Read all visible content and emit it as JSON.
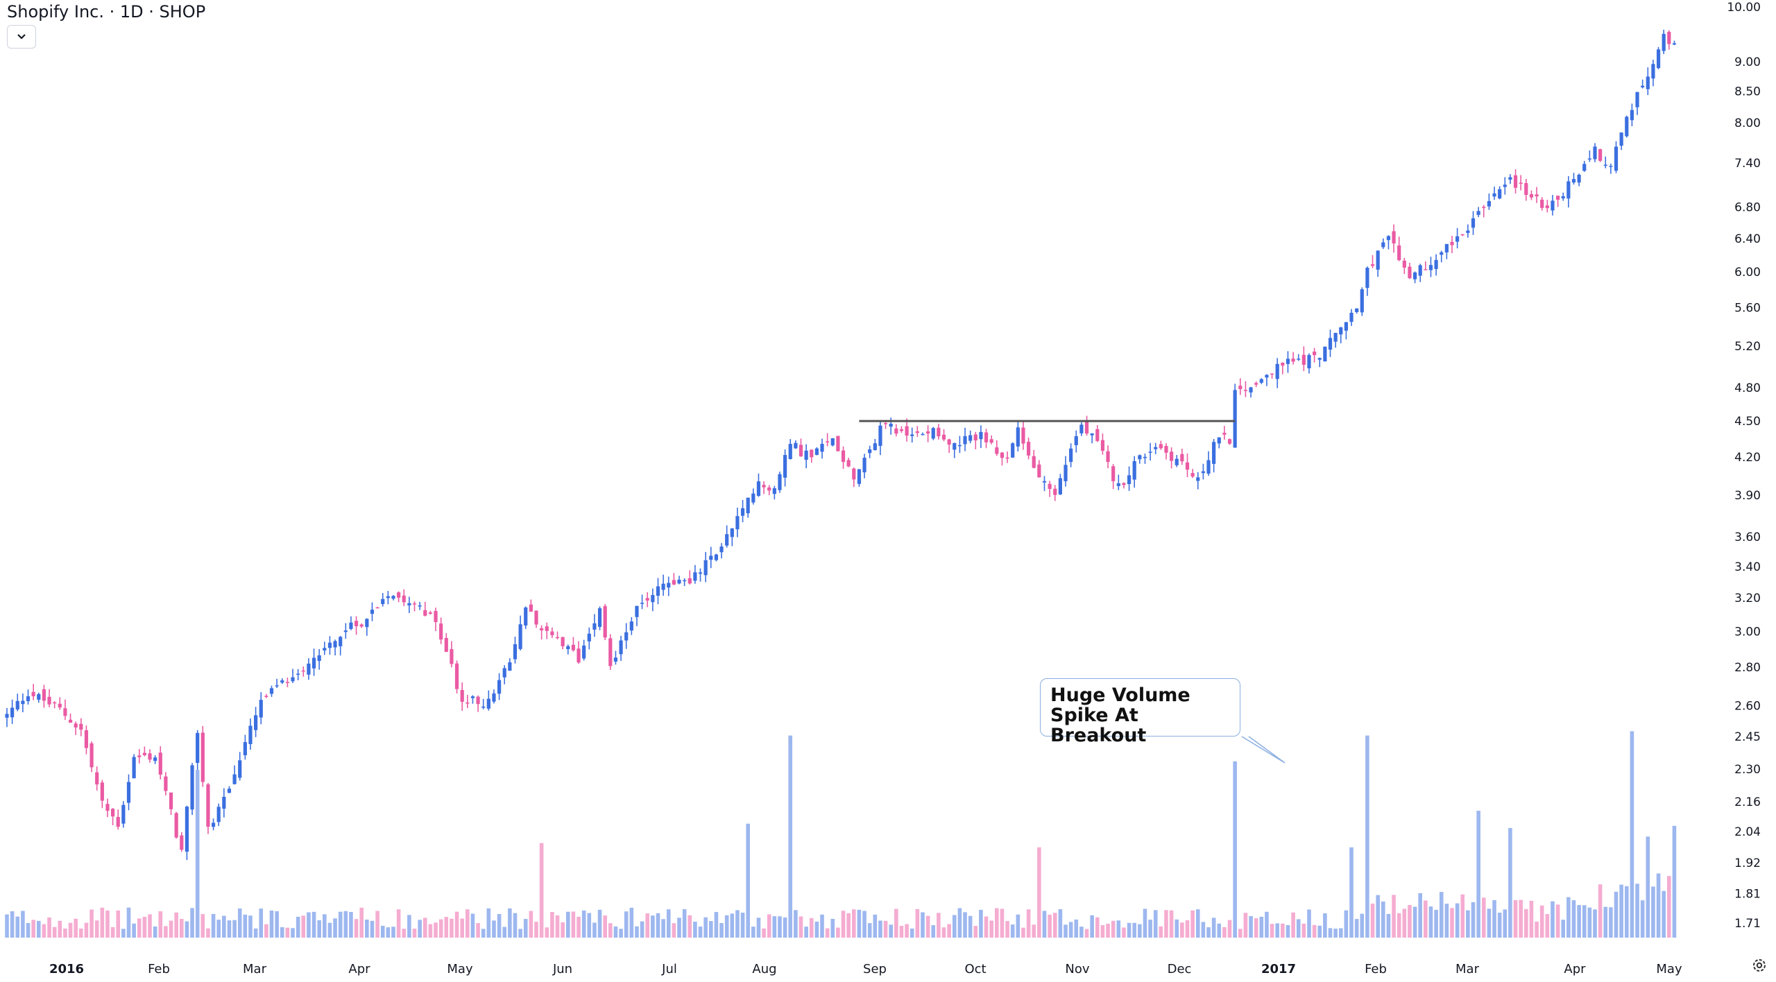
{
  "header": {
    "title": "Shopify Inc. · 1D · SHOP",
    "menu_icon": "chevron-down-icon"
  },
  "annotation": {
    "text": "Huge Volume\nSpike At Breakout"
  },
  "footer": {
    "settings_icon": "gear-icon"
  },
  "colors": {
    "up": "#3b6fe0",
    "down": "#ea5aa3",
    "vol_up": "#9db7ef",
    "vol_down": "#f5acd1",
    "resistance": "#555555"
  },
  "chart_data": {
    "type": "candlestick",
    "symbol": "SHOP",
    "interval": "1D",
    "y_scale": "log",
    "ylim": [
      1.66,
      10.0
    ],
    "y_ticks": [
      "10.00",
      "9.00",
      "8.50",
      "8.00",
      "7.40",
      "6.80",
      "6.40",
      "6.00",
      "5.60",
      "5.20",
      "4.80",
      "4.50",
      "4.20",
      "3.90",
      "3.60",
      "3.40",
      "3.20",
      "3.00",
      "2.80",
      "2.60",
      "2.45",
      "2.30",
      "2.16",
      "2.04",
      "1.92",
      "1.81",
      "1.71"
    ],
    "x_labels": [
      "2016",
      "Feb",
      "Mar",
      "Apr",
      "May",
      "Jun",
      "Jul",
      "Aug",
      "Sep",
      "Oct",
      "Nov",
      "Dec",
      "2017",
      "Feb",
      "Mar",
      "Apr",
      "May"
    ],
    "x_labels_bold": [
      "2016",
      "2017"
    ],
    "resistance_level": 4.5,
    "anchors": [
      {
        "day": 0,
        "price": 2.55
      },
      {
        "day": 4,
        "price": 2.67
      },
      {
        "day": 10,
        "price": 2.58
      },
      {
        "day": 14,
        "price": 2.48
      },
      {
        "day": 18,
        "price": 2.15
      },
      {
        "day": 21,
        "price": 2.07
      },
      {
        "day": 24,
        "price": 2.35
      },
      {
        "day": 28,
        "price": 2.36
      },
      {
        "day": 33,
        "price": 1.96
      },
      {
        "day": 36,
        "price": 2.48
      },
      {
        "day": 38,
        "price": 2.05
      },
      {
        "day": 42,
        "price": 2.22
      },
      {
        "day": 48,
        "price": 2.62
      },
      {
        "day": 55,
        "price": 2.78
      },
      {
        "day": 62,
        "price": 2.96
      },
      {
        "day": 68,
        "price": 3.08
      },
      {
        "day": 72,
        "price": 3.24
      },
      {
        "day": 78,
        "price": 3.17
      },
      {
        "day": 82,
        "price": 2.98
      },
      {
        "day": 86,
        "price": 2.62
      },
      {
        "day": 91,
        "price": 2.62
      },
      {
        "day": 95,
        "price": 2.82
      },
      {
        "day": 98,
        "price": 3.15
      },
      {
        "day": 103,
        "price": 2.96
      },
      {
        "day": 108,
        "price": 2.85
      },
      {
        "day": 112,
        "price": 3.16
      },
      {
        "day": 114,
        "price": 2.8
      },
      {
        "day": 118,
        "price": 3.08
      },
      {
        "day": 123,
        "price": 3.28
      },
      {
        "day": 130,
        "price": 3.33
      },
      {
        "day": 133,
        "price": 3.45
      },
      {
        "day": 136,
        "price": 3.6
      },
      {
        "day": 142,
        "price": 3.98
      },
      {
        "day": 145,
        "price": 3.95
      },
      {
        "day": 148,
        "price": 4.3
      },
      {
        "day": 152,
        "price": 4.2
      },
      {
        "day": 156,
        "price": 4.35
      },
      {
        "day": 160,
        "price": 4.05
      },
      {
        "day": 163,
        "price": 4.27
      },
      {
        "day": 166,
        "price": 4.5
      },
      {
        "day": 170,
        "price": 4.35
      },
      {
        "day": 175,
        "price": 4.45
      },
      {
        "day": 179,
        "price": 4.28
      },
      {
        "day": 184,
        "price": 4.4
      },
      {
        "day": 188,
        "price": 4.15
      },
      {
        "day": 191,
        "price": 4.4
      },
      {
        "day": 194,
        "price": 4.1
      },
      {
        "day": 198,
        "price": 3.9
      },
      {
        "day": 201,
        "price": 4.28
      },
      {
        "day": 203,
        "price": 4.46
      },
      {
        "day": 206,
        "price": 4.3
      },
      {
        "day": 210,
        "price": 3.96
      },
      {
        "day": 213,
        "price": 4.15
      },
      {
        "day": 217,
        "price": 4.3
      },
      {
        "day": 222,
        "price": 4.15
      },
      {
        "day": 225,
        "price": 4.0
      },
      {
        "day": 228,
        "price": 4.32
      },
      {
        "day": 231,
        "price": 4.35
      },
      {
        "day": 232,
        "price": 4.75
      },
      {
        "day": 236,
        "price": 4.85
      },
      {
        "day": 242,
        "price": 5.05
      },
      {
        "day": 247,
        "price": 5.08
      },
      {
        "day": 251,
        "price": 5.3
      },
      {
        "day": 255,
        "price": 5.6
      },
      {
        "day": 257,
        "price": 6.05
      },
      {
        "day": 261,
        "price": 6.38
      },
      {
        "day": 265,
        "price": 5.95
      },
      {
        "day": 268,
        "price": 6.05
      },
      {
        "day": 272,
        "price": 6.35
      },
      {
        "day": 276,
        "price": 6.48
      },
      {
        "day": 280,
        "price": 6.95
      },
      {
        "day": 284,
        "price": 7.2
      },
      {
        "day": 288,
        "price": 6.9
      },
      {
        "day": 292,
        "price": 6.82
      },
      {
        "day": 296,
        "price": 7.2
      },
      {
        "day": 300,
        "price": 7.6
      },
      {
        "day": 303,
        "price": 7.3
      },
      {
        "day": 306,
        "price": 8.15
      },
      {
        "day": 309,
        "price": 8.55
      },
      {
        "day": 313,
        "price": 9.4
      },
      {
        "day": 315,
        "price": 9.4
      }
    ],
    "volume_spikes": [
      {
        "day": 36,
        "rel": 0.78
      },
      {
        "day": 140,
        "rel": 0.53
      },
      {
        "day": 148,
        "rel": 0.94
      },
      {
        "day": 101,
        "rel": 0.44
      },
      {
        "day": 195,
        "rel": 0.42
      },
      {
        "day": 232,
        "rel": 0.82
      },
      {
        "day": 257,
        "rel": 0.94
      },
      {
        "day": 254,
        "rel": 0.42
      },
      {
        "day": 278,
        "rel": 0.59
      },
      {
        "day": 284,
        "rel": 0.51
      },
      {
        "day": 307,
        "rel": 0.96
      },
      {
        "day": 315,
        "rel": 0.52
      },
      {
        "day": 310,
        "rel": 0.47
      }
    ]
  }
}
